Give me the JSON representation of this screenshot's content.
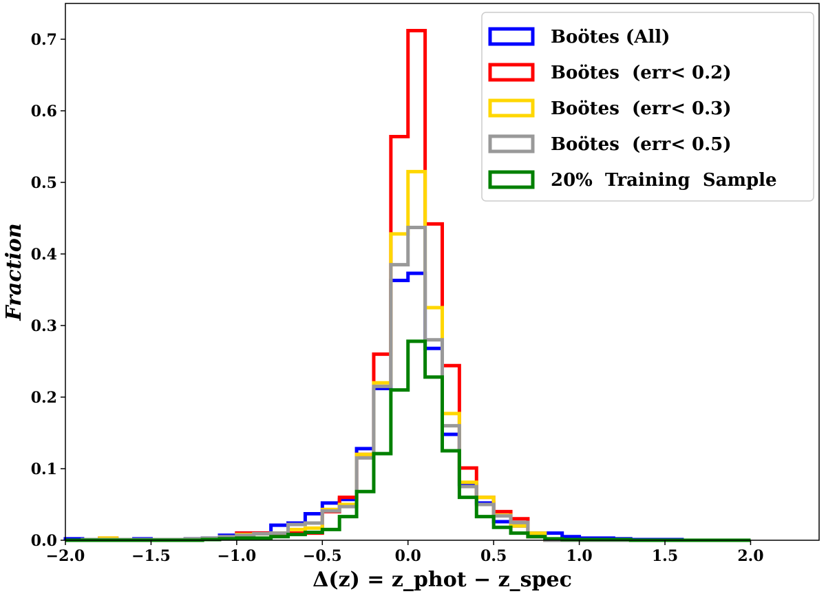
{
  "chart_data": {
    "type": "histogram",
    "xlabel": "Δ(z) = z_phot − z_spec",
    "ylabel": "Fraction",
    "xlim": [
      -2.0,
      2.4
    ],
    "ylim": [
      0.0,
      0.75
    ],
    "xticks": [
      -2.0,
      -1.5,
      -1.0,
      -0.5,
      0.0,
      0.5,
      1.0,
      1.5,
      2.0
    ],
    "xtick_labels": [
      "−2.0",
      "−1.5",
      "−1.0",
      "−0.5",
      "0.0",
      "0.5",
      "1.0",
      "1.5",
      "2.0"
    ],
    "yticks": [
      0.0,
      0.1,
      0.2,
      0.3,
      0.4,
      0.5,
      0.6,
      0.7
    ],
    "ytick_labels": [
      "0.0",
      "0.1",
      "0.2",
      "0.3",
      "0.4",
      "0.5",
      "0.6",
      "0.7"
    ],
    "grid": false,
    "legend_position": "top-right",
    "bin_edges": [
      -2.0,
      -1.9,
      -1.8,
      -1.7,
      -1.6,
      -1.5,
      -1.4,
      -1.3,
      -1.2,
      -1.1,
      -1.0,
      -0.9,
      -0.8,
      -0.7,
      -0.6,
      -0.5,
      -0.4,
      -0.3,
      -0.2,
      -0.1,
      0.0,
      0.1,
      0.2,
      0.3,
      0.4,
      0.5,
      0.6,
      0.7,
      0.8,
      0.9,
      1.0,
      1.1,
      1.2,
      1.3,
      1.4,
      1.5,
      1.6,
      1.7,
      1.8,
      1.9,
      2.0
    ],
    "series": [
      {
        "name": "Boötes (All)",
        "color": "#0000ff",
        "values": [
          0.002,
          0.001,
          0.002,
          0.001,
          0.002,
          0.001,
          0.001,
          0.002,
          0.003,
          0.007,
          0.01,
          0.01,
          0.021,
          0.024,
          0.037,
          0.052,
          0.057,
          0.128,
          0.212,
          0.363,
          0.373,
          0.268,
          0.148,
          0.078,
          0.052,
          0.026,
          0.02,
          0.01,
          0.01,
          0.005,
          0.003,
          0.003,
          0.002,
          0.001,
          0.001,
          0.001,
          0.0,
          0.0,
          0.0,
          0.0
        ]
      },
      {
        "name": "Boötes  (err< 0.2)",
        "color": "#ff0000",
        "values": [
          0.0,
          0.0,
          0.003,
          0.0,
          0.0,
          0.0,
          0.0,
          0.0,
          0.001,
          0.002,
          0.01,
          0.01,
          0.009,
          0.01,
          0.01,
          0.04,
          0.06,
          0.12,
          0.26,
          0.564,
          0.712,
          0.442,
          0.244,
          0.101,
          0.06,
          0.04,
          0.03,
          0.005,
          0.0,
          0.0,
          0.0,
          0.0,
          0.0,
          0.0,
          0.0,
          0.0,
          0.0,
          0.0,
          0.0,
          0.0
        ]
      },
      {
        "name": "Boötes  (err< 0.3)",
        "color": "#ffd700",
        "values": [
          0.0,
          0.001,
          0.003,
          0.001,
          0.0,
          0.0,
          0.001,
          0.001,
          0.001,
          0.003,
          0.008,
          0.009,
          0.01,
          0.015,
          0.017,
          0.043,
          0.05,
          0.12,
          0.22,
          0.428,
          0.515,
          0.325,
          0.177,
          0.081,
          0.06,
          0.035,
          0.02,
          0.01,
          0.0,
          0.0,
          0.0,
          0.0,
          0.0,
          0.0,
          0.0,
          0.0,
          0.0,
          0.0,
          0.0,
          0.0
        ]
      },
      {
        "name": "Boötes  (err< 0.5)",
        "color": "#999999",
        "values": [
          0.0,
          0.001,
          0.001,
          0.001,
          0.001,
          0.001,
          0.001,
          0.002,
          0.003,
          0.005,
          0.007,
          0.009,
          0.01,
          0.022,
          0.024,
          0.041,
          0.047,
          0.115,
          0.215,
          0.385,
          0.437,
          0.28,
          0.16,
          0.075,
          0.05,
          0.034,
          0.025,
          0.005,
          0.0,
          0.0,
          0.0,
          0.0,
          0.0,
          0.0,
          0.0,
          0.0,
          0.0,
          0.0,
          0.0,
          0.0
        ]
      },
      {
        "name": "20%  Training  Sample",
        "color": "#008000",
        "values": [
          0.0,
          0.0,
          0.0,
          0.0,
          0.0,
          0.0,
          0.0,
          0.0,
          0.001,
          0.002,
          0.003,
          0.003,
          0.005,
          0.008,
          0.011,
          0.015,
          0.033,
          0.068,
          0.121,
          0.21,
          0.278,
          0.228,
          0.125,
          0.06,
          0.033,
          0.018,
          0.01,
          0.005,
          0.002,
          0.001,
          0.001,
          0.001,
          0.001,
          0.0,
          0.0,
          0.0,
          0.0,
          0.0,
          0.0,
          0.0
        ]
      }
    ]
  }
}
